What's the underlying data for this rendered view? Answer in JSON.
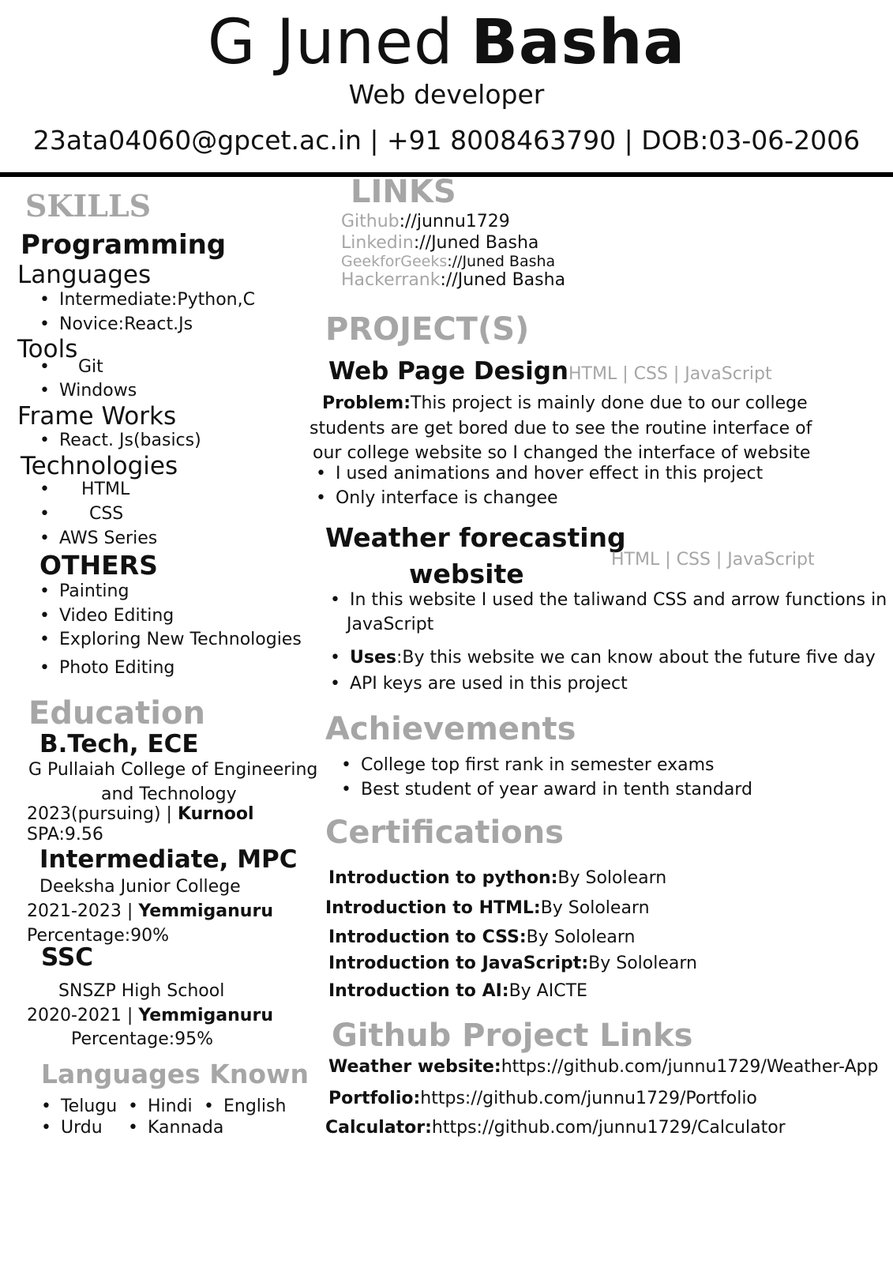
{
  "header": {
    "first_name": "G Juned",
    "last_name": "Basha",
    "role": "Web developer",
    "contact": "23ata04060@gpcet.ac.in | +91 8008463790 | DOB:03-06-2006"
  },
  "skills": {
    "title": "SKILLS",
    "programming_heading": "Programming",
    "languages_heading": "Languages",
    "languages": [
      "Intermediate:Python,C",
      "Novice:React.Js"
    ],
    "tools_heading": "Tools",
    "tools": [
      "Git",
      "Windows"
    ],
    "frameworks_heading": "Frame Works",
    "frameworks": [
      "React. Js(basics)"
    ],
    "technologies_heading": "Technologies",
    "technologies": [
      "HTML",
      "CSS",
      "AWS Series"
    ],
    "others_heading": "OTHERS",
    "others": [
      "Painting",
      "Video Editing",
      "Exploring New Technologies",
      "Photo Editing"
    ]
  },
  "education": {
    "title": "Education",
    "btech": {
      "degree": "B.Tech, ECE",
      "college_line1": "G Pullaiah College of Engineering",
      "college_line2": "and Technology",
      "years": "2023(pursuing) | ",
      "place": "Kurnool",
      "score": "SPA:9.56"
    },
    "inter": {
      "degree": "Intermediate, MPC",
      "college": "Deeksha Junior College",
      "years": "2021-2023 | ",
      "place": "Yemmiganuru",
      "score": "Percentage:90%"
    },
    "ssc": {
      "degree": "SSC",
      "school": "SNSZP High School",
      "years": "2020-2021 | ",
      "place": "Yemmiganuru",
      "score": "Percentage:95%"
    }
  },
  "languages_known": {
    "title": "Languages Known",
    "items": [
      "Telugu",
      "Hindi",
      "English",
      "Urdu",
      "Kannada"
    ]
  },
  "links": {
    "title": "LINKS",
    "items": [
      {
        "label": "Github",
        "value": "://junnu1729"
      },
      {
        "label": "Linkedin",
        "value": "://Juned Basha"
      },
      {
        "label": "GeekforGeeks",
        "value": "://Juned Basha"
      },
      {
        "label": "Hackerrank",
        "value": "://Juned Basha"
      }
    ]
  },
  "projects": {
    "title": "PROJECT(S)",
    "p1": {
      "name": "Web Page Design",
      "tech": "HTML | CSS | JavaScript",
      "problem_label": "Problem:",
      "problem_line1": "This project is mainly done due to our college",
      "problem_line2": "students are get bored due to see the routine interface of",
      "problem_line3": "our college website so I changed the interface of website",
      "bullets": [
        "I used animations and hover effect in this project",
        "Only interface is changee"
      ]
    },
    "p2": {
      "name_line1": "Weather forecasting",
      "name_line2": "website",
      "tech": "HTML | CSS | JavaScript",
      "bullet1_line1": "In this website I used the taliwand CSS and arrow functions in",
      "bullet1_line2": "JavaScript",
      "uses_label": "Uses",
      "uses_text": ":By this website we can know about the future five  days w",
      "bullet3": "API keys are used in this project"
    }
  },
  "achievements": {
    "title": "Achievements",
    "items": [
      "College top first rank in semester exams",
      "Best student of year award in tenth standard"
    ]
  },
  "certifications": {
    "title": "Certifications",
    "items": [
      {
        "label": "Introduction to python:",
        "value": "By Sololearn"
      },
      {
        "label": "Introduction to HTML:",
        "value": "By Sololearn"
      },
      {
        "label": "Introduction to CSS:",
        "value": "By Sololearn"
      },
      {
        "label": "Introduction to JavaScript:",
        "value": "By Sololearn"
      },
      {
        "label": "Introduction to AI:",
        "value": "By AICTE"
      }
    ]
  },
  "github_links": {
    "title": "Github Project Links",
    "items": [
      {
        "label": "Weather website:",
        "value": "https://github.com/junnu1729/Weather-App"
      },
      {
        "label": "Portfolio:",
        "value": "https://github.com/junnu1729/Portfolio"
      },
      {
        "label": "Calculator:",
        "value": "https://github.com/junnu1729/Calculator"
      }
    ]
  }
}
